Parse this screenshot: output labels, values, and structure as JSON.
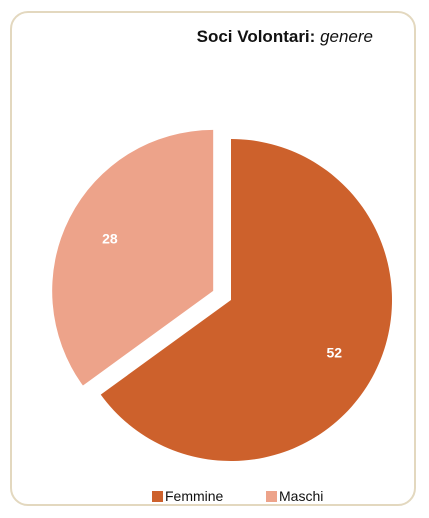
{
  "title": {
    "bold": "Soci Volontari:",
    "italic": "genere"
  },
  "colors": {
    "femmine": "#cd612c",
    "maschi": "#eda38a",
    "label": "#ffffff",
    "border": "#e3d8bf"
  },
  "chart_data": {
    "type": "pie",
    "title": "Soci Volontari: genere",
    "slices": [
      {
        "name": "Femmine",
        "value": 52,
        "color": "#cd612c",
        "exploded": false
      },
      {
        "name": "Maschi",
        "value": 28,
        "color": "#eda38a",
        "exploded": true
      }
    ],
    "legend_position": "bottom",
    "data_labels": true
  },
  "legend": [
    {
      "label": "Femmine",
      "color": "#cd612c"
    },
    {
      "label": "Maschi",
      "color": "#eda38a"
    }
  ]
}
